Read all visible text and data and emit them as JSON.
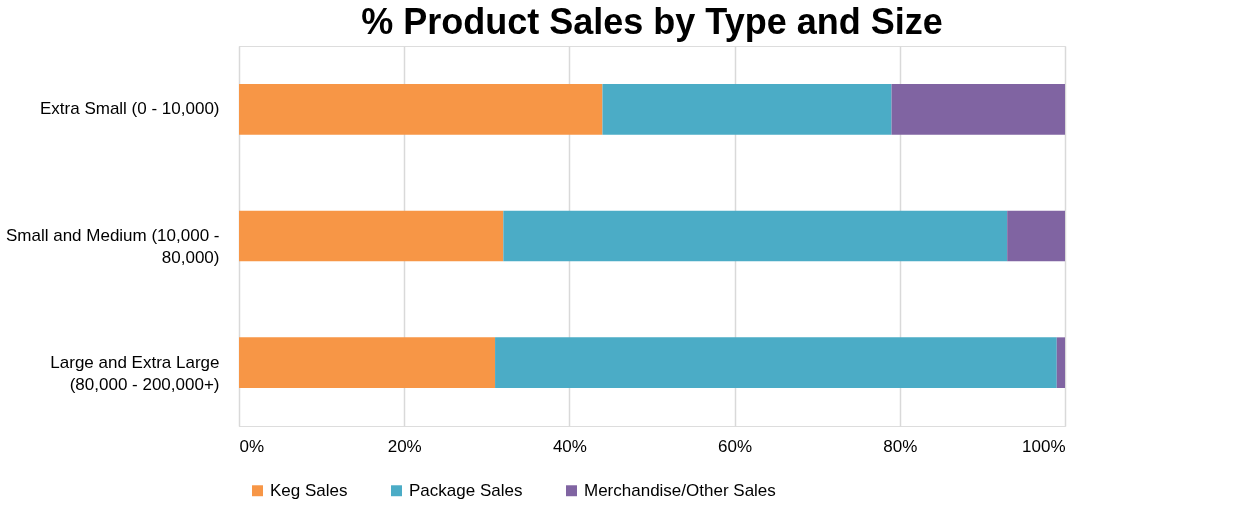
{
  "chart_data": {
    "type": "bar",
    "orientation": "horizontal",
    "stacked": true,
    "title": "% Product Sales by Type and Size",
    "categories": [
      "Extra Small (0 - 10,000)",
      "Small and Medium (10,000 - 80,000)",
      "Large and Extra Large (80,000 - 200,000+)"
    ],
    "series": [
      {
        "name": "Keg Sales",
        "color": "#f79646",
        "values": [
          44,
          32,
          31
        ]
      },
      {
        "name": "Package Sales",
        "color": "#4bacc6",
        "values": [
          35,
          61,
          68
        ]
      },
      {
        "name": "Merchandise/Other Sales",
        "color": "#8064a2",
        "values": [
          21,
          7,
          1
        ]
      }
    ],
    "xlim": [
      0,
      100
    ],
    "xticks": [
      {
        "value": 0,
        "label": "0%"
      },
      {
        "value": 20,
        "label": "20%"
      },
      {
        "value": 40,
        "label": "40%"
      },
      {
        "value": 60,
        "label": "60%"
      },
      {
        "value": 80,
        "label": "80%"
      },
      {
        "value": 100,
        "label": "100%"
      }
    ],
    "grid": "x",
    "legend": "bottom"
  }
}
